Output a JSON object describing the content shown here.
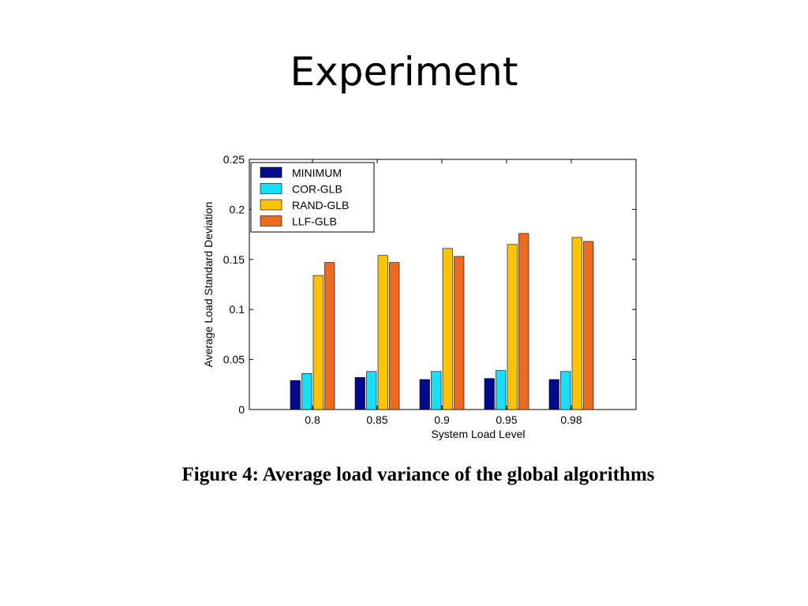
{
  "slide": {
    "title": "Experiment",
    "caption": "Figure 4: Average load variance of the global algorithms"
  },
  "chart_data": {
    "type": "bar",
    "title": "",
    "xlabel": "System Load Level",
    "ylabel": "Average Load Standard Deviation",
    "categories": [
      "0.8",
      "0.85",
      "0.9",
      "0.95",
      "0.98"
    ],
    "ylim": [
      0,
      0.25
    ],
    "yticks": [
      "0",
      "0.05",
      "0.1",
      "0.15",
      "0.2",
      "0.25"
    ],
    "legend_position": "top-left",
    "grid": false,
    "series": [
      {
        "name": "MINIMUM",
        "color": "#000c8c",
        "values": [
          0.029,
          0.032,
          0.03,
          0.031,
          0.03
        ]
      },
      {
        "name": "COR-GLB",
        "color": "#18def7",
        "values": [
          0.036,
          0.038,
          0.038,
          0.039,
          0.038
        ]
      },
      {
        "name": "RAND-GLB",
        "color": "#fcc208",
        "values": [
          0.134,
          0.154,
          0.161,
          0.165,
          0.172
        ]
      },
      {
        "name": "LLF-GLB",
        "color": "#ea6b21",
        "values": [
          0.147,
          0.147,
          0.153,
          0.176,
          0.168
        ]
      }
    ]
  }
}
